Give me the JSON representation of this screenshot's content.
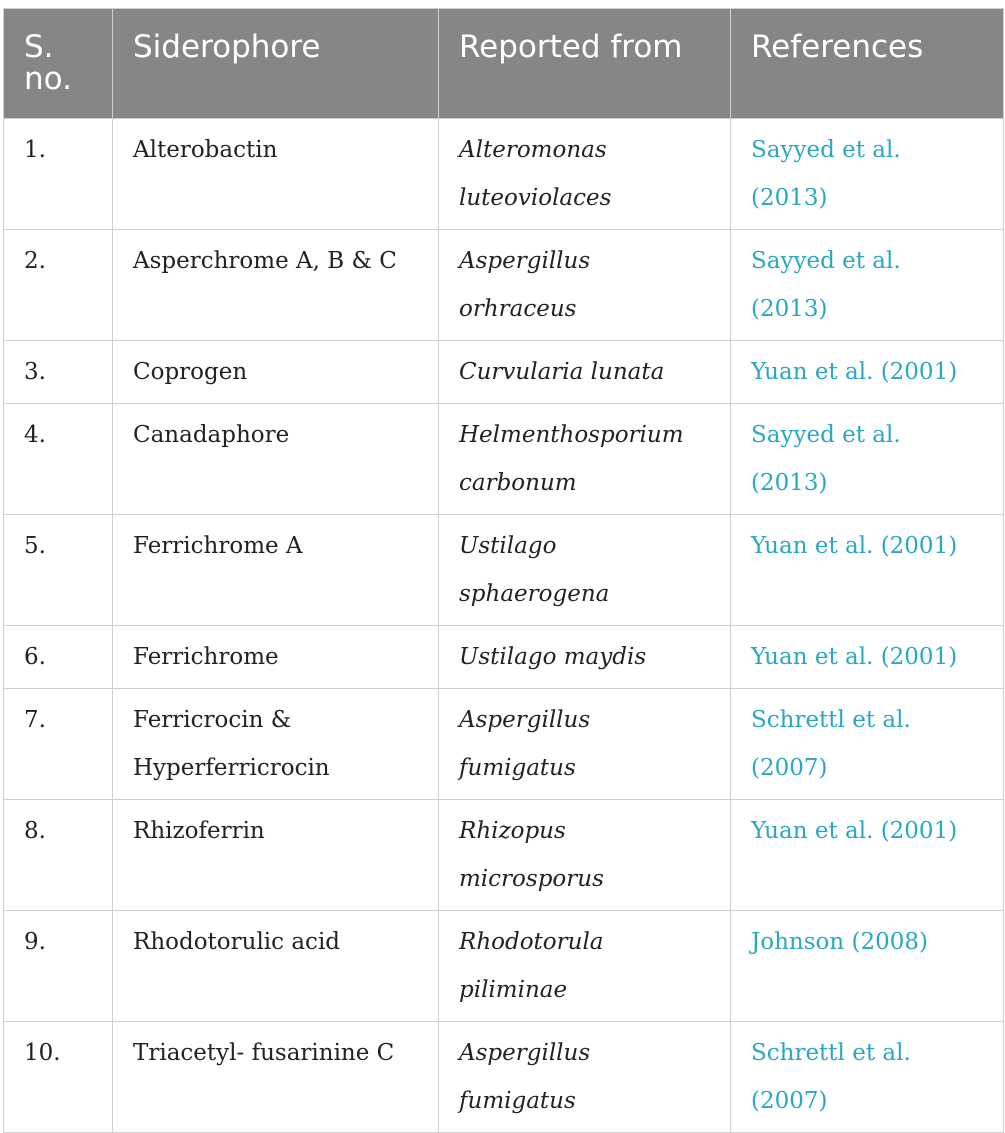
{
  "table": {
    "headers": [
      "S. no.",
      "Siderophore",
      "Reported from",
      "References"
    ],
    "rows": [
      {
        "no": "1.",
        "siderophore": "Alterobactin",
        "source": "Alteromonas luteoviolaces",
        "reference": "Sayyed et al. (2013)"
      },
      {
        "no": "2.",
        "siderophore": "Asperchrome A, B & C",
        "source": "Aspergillus orhraceus",
        "reference": "Sayyed et al. (2013)"
      },
      {
        "no": "3.",
        "siderophore": "Coprogen",
        "source": "Curvularia lunata",
        "reference": "Yuan et al. (2001)"
      },
      {
        "no": "4.",
        "siderophore": "Canadaphore",
        "source": "Helmenthosporium carbonum",
        "reference": "Sayyed et al. (2013)"
      },
      {
        "no": "5.",
        "siderophore": "Ferrichrome A",
        "source": "Ustilago sphaerogena",
        "reference": "Yuan et al. (2001)"
      },
      {
        "no": "6.",
        "siderophore": "Ferrichrome",
        "source": "Ustilago maydis",
        "reference": "Yuan et al. (2001)"
      },
      {
        "no": "7.",
        "siderophore": "Ferricrocin & Hyperferricrocin",
        "source": "Aspergillus fumigatus",
        "reference": "Schrettl et al. (2007)"
      },
      {
        "no": "8.",
        "siderophore": "Rhizoferrin",
        "source": "Rhizopus microsporus",
        "reference": "Yuan et al. (2001)"
      },
      {
        "no": "9.",
        "siderophore": "Rhodotorulic acid",
        "source": "Rhodotorula piliminae",
        "reference": "Johnson (2008)"
      },
      {
        "no": "10.",
        "siderophore": "Triacetyl- fusarinine C",
        "source": "Aspergillus fumigatus",
        "reference": "Schrettl et al. (2007)"
      }
    ]
  },
  "colors": {
    "header_bg": "#858785",
    "header_text": "#ffffff",
    "reference_link": "#2aa7c3"
  }
}
